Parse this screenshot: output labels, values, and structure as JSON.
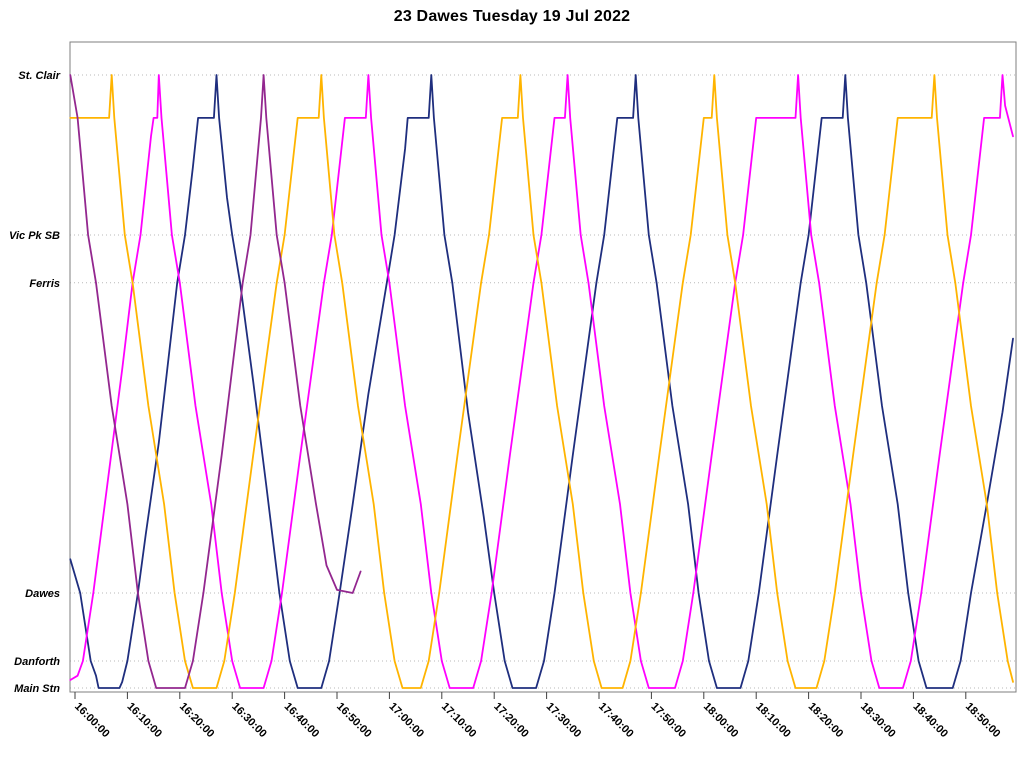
{
  "chart_data": {
    "type": "line",
    "title": "23 Dawes Tuesday 19 Jul 2022",
    "xlabel": "",
    "ylabel": "",
    "legend": "none",
    "grid": "horizontal-dotted",
    "x_unit": "minutes after 16:00:00",
    "x_range_minutes": [
      0,
      179
    ],
    "x_tick_interval_minutes": 10,
    "x_tick_labels": [
      "16:00:00",
      "16:10:00",
      "16:20:00",
      "16:30:00",
      "16:40:00",
      "16:50:00",
      "17:00:00",
      "17:10:00",
      "17:20:00",
      "17:30:00",
      "17:40:00",
      "17:50:00",
      "18:00:00",
      "18:10:00",
      "18:20:00",
      "18:30:00",
      "18:40:00",
      "18:50:00"
    ],
    "stations": [
      {
        "label": "St. Clair",
        "pos": 1.0
      },
      {
        "label": "Vic Pk SB",
        "pos": 0.739
      },
      {
        "label": "Ferris",
        "pos": 0.661
      },
      {
        "label": "Dawes",
        "pos": 0.155
      },
      {
        "label": "Danforth",
        "pos": 0.044
      },
      {
        "label": "Main Stn",
        "pos": 0.0
      }
    ],
    "series": [
      {
        "name": "vehicle-navy",
        "color": "#1f2e7e",
        "points": [
          [
            -0.9,
            0.21
          ],
          [
            1,
            0.155
          ],
          [
            3,
            0.044
          ],
          [
            4,
            0.02
          ],
          [
            4.5,
            0
          ],
          [
            8.5,
            0
          ],
          [
            9,
            0.01
          ],
          [
            10,
            0.044
          ],
          [
            12,
            0.155
          ],
          [
            13.5,
            0.25
          ],
          [
            16,
            0.4
          ],
          [
            19.5,
            0.661
          ],
          [
            21,
            0.739
          ],
          [
            22.5,
            0.85
          ],
          [
            23.5,
            0.93
          ],
          [
            26.5,
            0.93
          ],
          [
            27,
            1
          ],
          [
            27.5,
            0.93
          ],
          [
            29,
            0.8
          ],
          [
            30,
            0.739
          ],
          [
            31.5,
            0.661
          ],
          [
            34,
            0.5
          ],
          [
            36.5,
            0.33
          ],
          [
            39,
            0.155
          ],
          [
            41,
            0.044
          ],
          [
            42.5,
            0
          ],
          [
            47,
            0
          ],
          [
            48.5,
            0.044
          ],
          [
            50.5,
            0.155
          ],
          [
            53,
            0.3
          ],
          [
            56,
            0.48
          ],
          [
            59.5,
            0.661
          ],
          [
            61,
            0.739
          ],
          [
            63,
            0.88
          ],
          [
            63.5,
            0.93
          ],
          [
            67.5,
            0.93
          ],
          [
            68,
            1
          ],
          [
            68.5,
            0.93
          ],
          [
            70.5,
            0.739
          ],
          [
            72,
            0.661
          ],
          [
            75,
            0.45
          ],
          [
            78,
            0.28
          ],
          [
            80,
            0.155
          ],
          [
            82,
            0.044
          ],
          [
            83.5,
            0
          ],
          [
            88,
            0
          ],
          [
            89.5,
            0.044
          ],
          [
            91.5,
            0.155
          ],
          [
            95,
            0.38
          ],
          [
            99.5,
            0.661
          ],
          [
            101,
            0.739
          ],
          [
            103.5,
            0.93
          ],
          [
            106.5,
            0.93
          ],
          [
            107,
            1
          ],
          [
            107.5,
            0.93
          ],
          [
            109.5,
            0.739
          ],
          [
            111,
            0.661
          ],
          [
            114,
            0.46
          ],
          [
            117,
            0.3
          ],
          [
            119,
            0.155
          ],
          [
            121,
            0.044
          ],
          [
            122.5,
            0
          ],
          [
            127,
            0
          ],
          [
            128.5,
            0.044
          ],
          [
            130.5,
            0.155
          ],
          [
            134,
            0.38
          ],
          [
            138.5,
            0.661
          ],
          [
            140,
            0.739
          ],
          [
            142.5,
            0.93
          ],
          [
            146.5,
            0.93
          ],
          [
            147,
            1
          ],
          [
            147.5,
            0.93
          ],
          [
            149.5,
            0.739
          ],
          [
            151,
            0.661
          ],
          [
            154,
            0.46
          ],
          [
            157,
            0.3
          ],
          [
            159,
            0.155
          ],
          [
            161,
            0.044
          ],
          [
            162.5,
            0
          ],
          [
            167.5,
            0
          ],
          [
            169,
            0.044
          ],
          [
            171,
            0.155
          ],
          [
            174,
            0.3
          ],
          [
            177,
            0.45
          ],
          [
            179,
            0.57
          ]
        ]
      },
      {
        "name": "vehicle-magenta",
        "color": "#ff00ff",
        "points": [
          [
            -0.9,
            0.013
          ],
          [
            0.5,
            0.02
          ],
          [
            1.5,
            0.044
          ],
          [
            3.5,
            0.155
          ],
          [
            6,
            0.32
          ],
          [
            9,
            0.52
          ],
          [
            11,
            0.661
          ],
          [
            12.5,
            0.739
          ],
          [
            14.5,
            0.9
          ],
          [
            15,
            0.93
          ],
          [
            15.7,
            0.93
          ],
          [
            16,
            1
          ],
          [
            16.5,
            0.93
          ],
          [
            18.5,
            0.739
          ],
          [
            20,
            0.661
          ],
          [
            23,
            0.46
          ],
          [
            26,
            0.3
          ],
          [
            28,
            0.155
          ],
          [
            30,
            0.044
          ],
          [
            31.5,
            0
          ],
          [
            36,
            0
          ],
          [
            37.5,
            0.044
          ],
          [
            39.5,
            0.155
          ],
          [
            43,
            0.38
          ],
          [
            47.5,
            0.661
          ],
          [
            49,
            0.739
          ],
          [
            51.5,
            0.93
          ],
          [
            55.5,
            0.93
          ],
          [
            56,
            1
          ],
          [
            56.5,
            0.93
          ],
          [
            58.5,
            0.739
          ],
          [
            60,
            0.661
          ],
          [
            63,
            0.46
          ],
          [
            66,
            0.3
          ],
          [
            68,
            0.155
          ],
          [
            70,
            0.044
          ],
          [
            71.5,
            0
          ],
          [
            76,
            0
          ],
          [
            77.5,
            0.044
          ],
          [
            79.5,
            0.155
          ],
          [
            83,
            0.38
          ],
          [
            87.5,
            0.661
          ],
          [
            89,
            0.739
          ],
          [
            91.5,
            0.93
          ],
          [
            93.5,
            0.93
          ],
          [
            94,
            1
          ],
          [
            94.5,
            0.93
          ],
          [
            96.5,
            0.739
          ],
          [
            98,
            0.661
          ],
          [
            101,
            0.46
          ],
          [
            104,
            0.3
          ],
          [
            106,
            0.155
          ],
          [
            108,
            0.044
          ],
          [
            109.5,
            0
          ],
          [
            114.5,
            0
          ],
          [
            116,
            0.044
          ],
          [
            118,
            0.155
          ],
          [
            121.5,
            0.38
          ],
          [
            126,
            0.661
          ],
          [
            127.5,
            0.739
          ],
          [
            130,
            0.93
          ],
          [
            137.5,
            0.93
          ],
          [
            138,
            1
          ],
          [
            138.5,
            0.93
          ],
          [
            140.5,
            0.739
          ],
          [
            142,
            0.661
          ],
          [
            145,
            0.46
          ],
          [
            148,
            0.3
          ],
          [
            150,
            0.155
          ],
          [
            152,
            0.044
          ],
          [
            153.5,
            0
          ],
          [
            158,
            0
          ],
          [
            159.5,
            0.044
          ],
          [
            161.5,
            0.155
          ],
          [
            165,
            0.38
          ],
          [
            169.5,
            0.661
          ],
          [
            171,
            0.739
          ],
          [
            173.5,
            0.93
          ],
          [
            176.5,
            0.93
          ],
          [
            177,
            1
          ],
          [
            177.5,
            0.95
          ],
          [
            179,
            0.9
          ]
        ]
      },
      {
        "name": "vehicle-gold",
        "color": "#ffb400",
        "points": [
          [
            -0.9,
            0.93
          ],
          [
            6.5,
            0.93
          ],
          [
            7,
            1
          ],
          [
            7.5,
            0.93
          ],
          [
            9.5,
            0.739
          ],
          [
            11,
            0.661
          ],
          [
            14,
            0.46
          ],
          [
            17,
            0.3
          ],
          [
            19,
            0.155
          ],
          [
            21,
            0.044
          ],
          [
            22.5,
            0
          ],
          [
            27,
            0
          ],
          [
            28.5,
            0.044
          ],
          [
            30.5,
            0.155
          ],
          [
            34,
            0.38
          ],
          [
            38.5,
            0.661
          ],
          [
            40,
            0.739
          ],
          [
            42.5,
            0.93
          ],
          [
            46.5,
            0.93
          ],
          [
            47,
            1
          ],
          [
            47.5,
            0.93
          ],
          [
            49.5,
            0.739
          ],
          [
            51,
            0.661
          ],
          [
            54,
            0.46
          ],
          [
            57,
            0.3
          ],
          [
            59,
            0.155
          ],
          [
            61,
            0.044
          ],
          [
            62.5,
            0
          ],
          [
            66,
            0
          ],
          [
            67.5,
            0.044
          ],
          [
            69.5,
            0.155
          ],
          [
            73,
            0.38
          ],
          [
            77.5,
            0.661
          ],
          [
            79,
            0.739
          ],
          [
            81.5,
            0.93
          ],
          [
            84.5,
            0.93
          ],
          [
            85,
            1
          ],
          [
            85.5,
            0.93
          ],
          [
            87.5,
            0.739
          ],
          [
            89,
            0.661
          ],
          [
            92,
            0.46
          ],
          [
            95,
            0.3
          ],
          [
            97,
            0.155
          ],
          [
            99,
            0.044
          ],
          [
            100.5,
            0
          ],
          [
            104.5,
            0
          ],
          [
            106,
            0.044
          ],
          [
            108,
            0.155
          ],
          [
            111.5,
            0.38
          ],
          [
            116,
            0.661
          ],
          [
            117.5,
            0.739
          ],
          [
            120,
            0.93
          ],
          [
            121.5,
            0.93
          ],
          [
            122,
            1
          ],
          [
            122.5,
            0.93
          ],
          [
            124.5,
            0.739
          ],
          [
            126,
            0.661
          ],
          [
            129,
            0.46
          ],
          [
            132,
            0.3
          ],
          [
            134,
            0.155
          ],
          [
            136,
            0.044
          ],
          [
            137.5,
            0
          ],
          [
            141.5,
            0
          ],
          [
            143,
            0.044
          ],
          [
            145,
            0.155
          ],
          [
            148.5,
            0.38
          ],
          [
            153,
            0.661
          ],
          [
            154.5,
            0.739
          ],
          [
            157,
            0.93
          ],
          [
            163.5,
            0.93
          ],
          [
            164,
            1
          ],
          [
            164.5,
            0.93
          ],
          [
            166.5,
            0.739
          ],
          [
            168,
            0.661
          ],
          [
            171,
            0.46
          ],
          [
            174,
            0.3
          ],
          [
            176,
            0.155
          ],
          [
            178,
            0.044
          ],
          [
            179,
            0.01
          ]
        ]
      },
      {
        "name": "vehicle-purple",
        "color": "#93278f",
        "points": [
          [
            -0.9,
            1
          ],
          [
            0.5,
            0.93
          ],
          [
            2.5,
            0.739
          ],
          [
            4,
            0.661
          ],
          [
            7,
            0.46
          ],
          [
            10,
            0.3
          ],
          [
            12,
            0.155
          ],
          [
            14,
            0.044
          ],
          [
            15.5,
            0
          ],
          [
            21,
            0
          ],
          [
            22.5,
            0.044
          ],
          [
            24.5,
            0.155
          ],
          [
            28,
            0.38
          ],
          [
            32,
            0.661
          ],
          [
            33.5,
            0.739
          ],
          [
            35.5,
            0.93
          ],
          [
            36,
            1
          ],
          [
            36.5,
            0.93
          ],
          [
            38.5,
            0.739
          ],
          [
            40,
            0.661
          ],
          [
            43,
            0.46
          ],
          [
            46,
            0.3
          ],
          [
            48,
            0.2
          ],
          [
            50,
            0.16
          ],
          [
            53,
            0.155
          ],
          [
            54.5,
            0.19
          ]
        ]
      }
    ]
  }
}
